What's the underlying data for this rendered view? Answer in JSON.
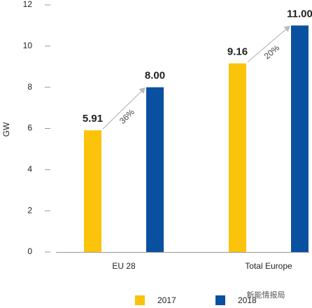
{
  "chart_data": {
    "type": "bar",
    "ylabel": "GW",
    "categories": [
      "EU 28",
      "Total Europe"
    ],
    "series": [
      {
        "name": "2017",
        "color": "#fcc30b",
        "values": [
          5.91,
          9.16
        ],
        "value_labels": [
          "5.91",
          "9.16"
        ]
      },
      {
        "name": "2018",
        "color": "#0a50a1",
        "values": [
          8,
          11
        ],
        "value_labels": [
          "8.00",
          "11.00"
        ]
      }
    ],
    "annotations": [
      "36%",
      "20%"
    ],
    "ylim": [
      0,
      12
    ],
    "yticks": [
      0,
      2,
      4,
      6,
      8,
      10,
      12
    ],
    "watermark": "新能情报局"
  }
}
